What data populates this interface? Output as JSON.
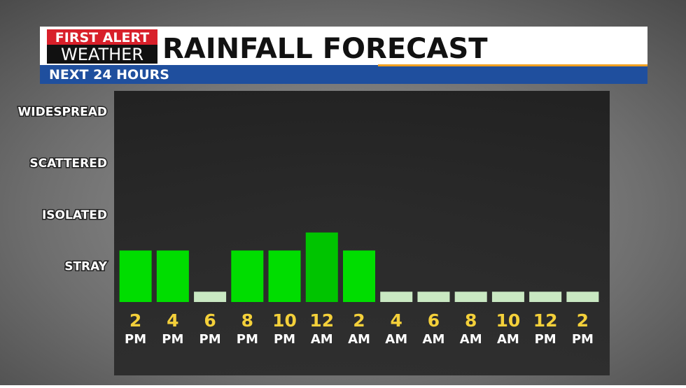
{
  "header": {
    "brand_top": "FIRST ALERT",
    "brand_bottom": "WEATHER",
    "title": "RAINFALL FORECAST",
    "subtitle": "NEXT 24 HOURS"
  },
  "chart_data": {
    "type": "bar",
    "categories": [
      [
        "2",
        "PM"
      ],
      [
        "4",
        "PM"
      ],
      [
        "6",
        "PM"
      ],
      [
        "8",
        "PM"
      ],
      [
        "10",
        "PM"
      ],
      [
        "12",
        "AM"
      ],
      [
        "2",
        "AM"
      ],
      [
        "4",
        "AM"
      ],
      [
        "6",
        "AM"
      ],
      [
        "8",
        "AM"
      ],
      [
        "10",
        "AM"
      ],
      [
        "12",
        "PM"
      ],
      [
        "2",
        "PM"
      ]
    ],
    "values": [
      1,
      1,
      0.2,
      1,
      1,
      1.35,
      1,
      0.2,
      0.2,
      0.2,
      0.2,
      0.2,
      0.2
    ],
    "colors": [
      "#00dd00",
      "#00dd00",
      "#c9e8c2",
      "#00dd00",
      "#00dd00",
      "#00c400",
      "#00dd00",
      "#c9e8c2",
      "#c9e8c2",
      "#c9e8c2",
      "#c9e8c2",
      "#c9e8c2",
      "#c9e8c2"
    ],
    "ylim": [
      0,
      4.1
    ],
    "yticks": [
      {
        "value": 0.7,
        "label": "STRAY"
      },
      {
        "value": 1.7,
        "label": "ISOLATED"
      },
      {
        "value": 2.7,
        "label": "SCATTERED"
      },
      {
        "value": 3.7,
        "label": "WIDESPREAD"
      }
    ],
    "grid": false
  }
}
